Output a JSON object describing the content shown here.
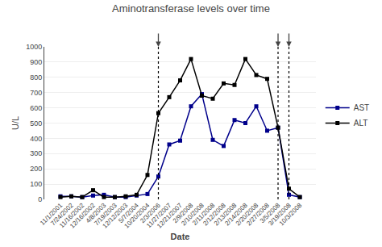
{
  "chart_data": {
    "type": "line",
    "title": "Aminotransferase levels over time",
    "xlabel": "Date",
    "ylabel": "U/L",
    "categories": [
      "11/1/2001",
      "7/24/2002",
      "11/16/2002",
      "12/16/2002",
      "4/8/2003",
      "7/19/2003",
      "12/12/2003",
      "5/7/2004",
      "10/20/2004",
      "2/3/2006",
      "11/27/2007",
      "12/21/2007",
      "2/9/2008",
      "2/10/2008",
      "2/11/2008",
      "2/12/2008",
      "2/13/2008",
      "2/14/2008",
      "2/20/2008",
      "2/27/2008",
      "3/5/2008",
      "3/19/2008",
      "10/3/2008"
    ],
    "series": [
      {
        "name": "AST",
        "color": "#00008B",
        "marker": "square",
        "values": [
          20,
          20,
          15,
          25,
          30,
          15,
          15,
          25,
          35,
          150,
          360,
          385,
          610,
          690,
          390,
          350,
          520,
          500,
          610,
          450,
          470,
          30,
          15
        ]
      },
      {
        "name": "ALT",
        "color": "#000000",
        "marker": "square",
        "values": [
          15,
          20,
          15,
          60,
          15,
          15,
          20,
          30,
          160,
          565,
          670,
          780,
          920,
          680,
          660,
          760,
          750,
          920,
          815,
          790,
          470,
          70,
          15
        ]
      }
    ],
    "vlines": {
      "at": [
        "2/3/2006",
        "3/5/2008",
        "3/19/2008"
      ],
      "color": "#000000",
      "line_style": "dotted"
    },
    "arrows": {
      "at": [
        "2/3/2006",
        "3/5/2008",
        "3/19/2008"
      ]
    },
    "ylim": [
      0,
      1000
    ],
    "yticks": [
      0,
      100,
      200,
      300,
      400,
      500,
      600,
      700,
      800,
      900,
      1000
    ],
    "grid": true,
    "legend": "right"
  }
}
